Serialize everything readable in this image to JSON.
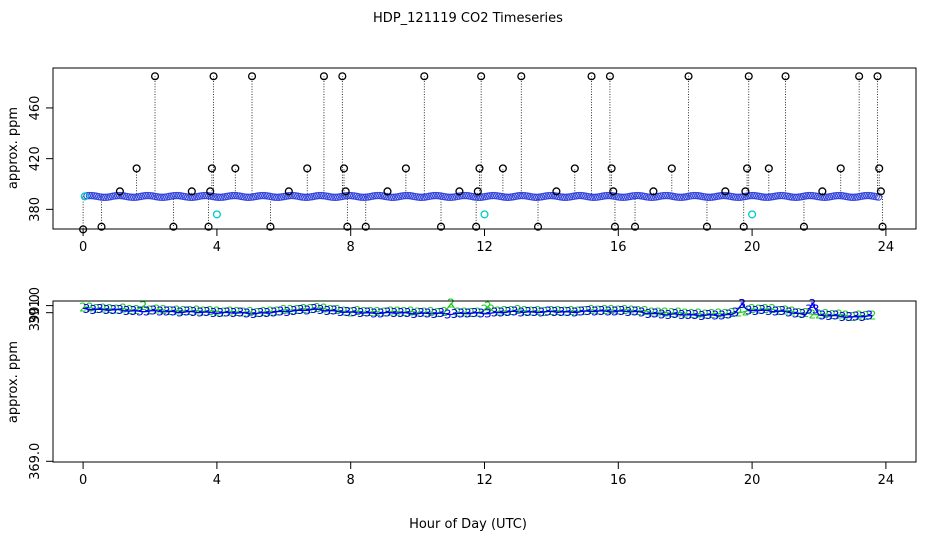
{
  "figure": {
    "title": "HDP_121119  CO2 Timeseries",
    "xlabel": "Hour of Day (UTC)"
  },
  "colors": {
    "series2": "#22cc22",
    "series3": "#0000ee",
    "points": "#3344dd",
    "flagged": "#00cccc",
    "outliers": "#000000"
  },
  "chart_data": [
    {
      "type": "scatter",
      "ylabel": "approx. ppm",
      "xlim": [
        -0.9,
        24.9
      ],
      "ylim": [
        364.5,
        491.5
      ],
      "xticks": [
        0,
        4,
        8,
        12,
        16,
        20,
        24
      ],
      "xtick_labels": [
        "0",
        "4",
        "8",
        "12",
        "16",
        "20",
        "24"
      ],
      "yticks": [
        380,
        420,
        460
      ],
      "ytick_labels": [
        "380",
        "420",
        "460"
      ],
      "baseline": 390.2,
      "flagged": [
        {
          "x": 0.05,
          "y": 390.2
        },
        {
          "x": 4.0,
          "y": 376.0
        },
        {
          "x": 12.0,
          "y": 376.0
        },
        {
          "x": 20.0,
          "y": 376.0
        }
      ],
      "outliers": [
        {
          "x": 0.0,
          "y": 364.2
        },
        {
          "x": 0.55,
          "y": 366.3
        },
        {
          "x": 1.1,
          "y": 394.2
        },
        {
          "x": 1.6,
          "y": 412.3
        },
        {
          "x": 2.15,
          "y": 485.0
        },
        {
          "x": 2.7,
          "y": 366.3
        },
        {
          "x": 3.25,
          "y": 394.2
        },
        {
          "x": 3.75,
          "y": 366.3
        },
        {
          "x": 3.8,
          "y": 394.2
        },
        {
          "x": 3.85,
          "y": 412.3
        },
        {
          "x": 3.9,
          "y": 485.0
        },
        {
          "x": 4.55,
          "y": 412.3
        },
        {
          "x": 5.05,
          "y": 485.0
        },
        {
          "x": 5.6,
          "y": 366.3
        },
        {
          "x": 6.15,
          "y": 394.2
        },
        {
          "x": 6.7,
          "y": 412.3
        },
        {
          "x": 7.2,
          "y": 485.0
        },
        {
          "x": 7.75,
          "y": 485.0
        },
        {
          "x": 7.8,
          "y": 412.3
        },
        {
          "x": 7.85,
          "y": 394.2
        },
        {
          "x": 7.9,
          "y": 366.3
        },
        {
          "x": 8.45,
          "y": 366.3
        },
        {
          "x": 9.1,
          "y": 394.2
        },
        {
          "x": 9.65,
          "y": 412.3
        },
        {
          "x": 10.2,
          "y": 485.0
        },
        {
          "x": 10.7,
          "y": 366.3
        },
        {
          "x": 11.25,
          "y": 394.2
        },
        {
          "x": 11.75,
          "y": 366.3
        },
        {
          "x": 11.8,
          "y": 394.2
        },
        {
          "x": 11.85,
          "y": 412.3
        },
        {
          "x": 11.9,
          "y": 485.0
        },
        {
          "x": 12.55,
          "y": 412.3
        },
        {
          "x": 13.1,
          "y": 485.0
        },
        {
          "x": 13.6,
          "y": 366.3
        },
        {
          "x": 14.15,
          "y": 394.2
        },
        {
          "x": 14.7,
          "y": 412.3
        },
        {
          "x": 15.2,
          "y": 485.0
        },
        {
          "x": 15.75,
          "y": 485.0
        },
        {
          "x": 15.8,
          "y": 412.3
        },
        {
          "x": 15.85,
          "y": 394.2
        },
        {
          "x": 15.9,
          "y": 366.3
        },
        {
          "x": 16.5,
          "y": 366.3
        },
        {
          "x": 17.05,
          "y": 394.2
        },
        {
          "x": 17.6,
          "y": 412.3
        },
        {
          "x": 18.1,
          "y": 485.0
        },
        {
          "x": 18.65,
          "y": 366.3
        },
        {
          "x": 19.2,
          "y": 394.2
        },
        {
          "x": 19.75,
          "y": 366.3
        },
        {
          "x": 19.8,
          "y": 394.2
        },
        {
          "x": 19.85,
          "y": 412.3
        },
        {
          "x": 19.9,
          "y": 485.0
        },
        {
          "x": 20.5,
          "y": 412.3
        },
        {
          "x": 21.0,
          "y": 485.0
        },
        {
          "x": 21.55,
          "y": 366.3
        },
        {
          "x": 22.1,
          "y": 394.2
        },
        {
          "x": 22.65,
          "y": 412.3
        },
        {
          "x": 23.2,
          "y": 485.0
        },
        {
          "x": 23.75,
          "y": 485.0
        },
        {
          "x": 23.8,
          "y": 412.3
        },
        {
          "x": 23.85,
          "y": 394.2
        },
        {
          "x": 23.9,
          "y": 366.3
        }
      ]
    },
    {
      "type": "line",
      "ylabel": "approx. ppm",
      "xlim": [
        -0.9,
        24.9
      ],
      "ylim": [
        368.9,
        391.65
      ],
      "xticks": [
        0,
        4,
        8,
        12,
        16,
        20,
        24
      ],
      "xtick_labels": [
        "0",
        "4",
        "8",
        "12",
        "16",
        "20",
        "24"
      ],
      "yticks": [
        369.0,
        390.0,
        391.0
      ],
      "ytick_labels": [
        "369.0",
        "390.0",
        "391.0"
      ],
      "x": [
        0,
        0.5,
        1,
        1.5,
        2,
        2.5,
        3,
        3.5,
        4,
        4.5,
        5,
        5.5,
        6,
        6.5,
        7,
        7.5,
        8,
        8.5,
        9,
        9.5,
        10,
        10.5,
        11,
        11.5,
        12,
        12.5,
        13,
        13.5,
        14,
        14.5,
        15,
        15.5,
        16,
        16.5,
        17,
        17.5,
        18,
        18.5,
        19,
        19.5,
        20,
        20.5,
        21,
        21.5,
        22,
        22.5,
        23,
        23.5
      ],
      "series": [
        {
          "name": "2",
          "marker": "2",
          "values": [
            390.7,
            390.6,
            390.5,
            390.4,
            390.4,
            390.3,
            390.3,
            390.2,
            390.2,
            390.1,
            390.0,
            390.1,
            390.3,
            390.5,
            390.6,
            390.4,
            390.1,
            390.1,
            390.1,
            390.1,
            390.1,
            390.0,
            390.0,
            390.0,
            390.0,
            390.2,
            390.3,
            390.2,
            390.2,
            390.2,
            390.3,
            390.3,
            390.4,
            390.3,
            390.1,
            390.0,
            389.9,
            389.8,
            389.8,
            390.0,
            390.4,
            390.5,
            390.3,
            389.9,
            389.8,
            389.7,
            389.5,
            389.6
          ]
        },
        {
          "name": "3",
          "marker": "3",
          "values": [
            390.55,
            390.45,
            390.35,
            390.25,
            390.2,
            390.15,
            390.1,
            390.05,
            390.0,
            389.95,
            389.9,
            389.95,
            390.15,
            390.35,
            390.4,
            390.25,
            390.0,
            389.95,
            389.95,
            389.95,
            389.9,
            389.85,
            389.85,
            389.9,
            389.9,
            390.05,
            390.1,
            390.1,
            390.1,
            390.1,
            390.15,
            390.2,
            390.2,
            390.1,
            389.9,
            389.7,
            389.75,
            389.6,
            389.6,
            389.8,
            390.3,
            390.3,
            390.1,
            389.75,
            389.6,
            389.5,
            389.4,
            389.5
          ]
        }
      ],
      "spikes": [
        {
          "series": "2",
          "x": 1.8,
          "y": 390.95
        },
        {
          "series": "2",
          "x": 11.0,
          "y": 391.3
        },
        {
          "series": "2",
          "x": 12.1,
          "y": 390.85
        },
        {
          "series": "3",
          "x": 19.7,
          "y": 391.25
        },
        {
          "series": "3",
          "x": 21.8,
          "y": 391.25
        }
      ]
    }
  ]
}
